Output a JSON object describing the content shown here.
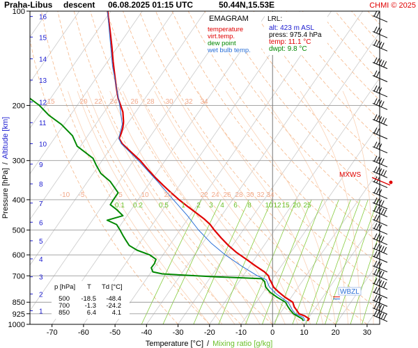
{
  "header": {
    "station": "Praha-Libus",
    "direction": "descent",
    "datetime": "06.08.2025 01:15 UTC",
    "coords": "50.44N,15.53E",
    "credit": "CHMI © 2025"
  },
  "chart_data": {
    "type": "line",
    "title": "EMAGRAM",
    "xlabel": "Temperature [°C]",
    "xlabel_sep": "/",
    "xlabel_secondary": "Mixing ratio [g/kg]",
    "ylabel": "Pressure [hPa]",
    "ylabel_sep": "/",
    "ylabel_secondary": "Altitude [km]",
    "x_ticks": [
      -70,
      -60,
      -50,
      -40,
      -30,
      -20,
      -10,
      0,
      10,
      20,
      30
    ],
    "xlim": [
      -77,
      34
    ],
    "y_scale": "log",
    "ylim": [
      1000,
      100
    ],
    "pressure_ticks": [
      100,
      200,
      300,
      400,
      500,
      600,
      700,
      850,
      925,
      1000
    ],
    "altitude_ticks": [
      {
        "km": 1,
        "p": 905
      },
      {
        "km": 2,
        "p": 800
      },
      {
        "km": 3,
        "p": 705
      },
      {
        "km": 4,
        "p": 618
      },
      {
        "km": 5,
        "p": 541
      },
      {
        "km": 6,
        "p": 472
      },
      {
        "km": 7,
        "p": 410
      },
      {
        "km": 8,
        "p": 356
      },
      {
        "km": 9,
        "p": 308
      },
      {
        "km": 10,
        "p": 265
      },
      {
        "km": 11,
        "p": 227
      },
      {
        "km": 12,
        "p": 195
      },
      {
        "km": 13,
        "p": 166
      },
      {
        "km": 14,
        "p": 142
      },
      {
        "km": 15,
        "p": 121
      },
      {
        "km": 16,
        "p": 104
      }
    ],
    "legend": [
      {
        "name": "temperature",
        "color": "#e00000"
      },
      {
        "name": "virt.temp.",
        "color": "#e00000"
      },
      {
        "name": "dew point",
        "color": "#008800"
      },
      {
        "name": "wet bulb temp.",
        "color": "#2a6fd6"
      }
    ],
    "series": [
      {
        "name": "temperature",
        "color": "#e00000",
        "points": [
          {
            "p": 975,
            "t": 11.1
          },
          {
            "p": 960,
            "t": 11.6
          },
          {
            "p": 940,
            "t": 10.2
          },
          {
            "p": 925,
            "t": 8.4
          },
          {
            "p": 900,
            "t": 7.6
          },
          {
            "p": 880,
            "t": 6.9
          },
          {
            "p": 850,
            "t": 6.4
          },
          {
            "p": 820,
            "t": 4.0
          },
          {
            "p": 790,
            "t": 2.0
          },
          {
            "p": 760,
            "t": 0.3
          },
          {
            "p": 730,
            "t": -0.5
          },
          {
            "p": 720,
            "t": -0.9
          },
          {
            "p": 700,
            "t": -1.3
          },
          {
            "p": 680,
            "t": -2.6
          },
          {
            "p": 650,
            "t": -5.5
          },
          {
            "p": 620,
            "t": -8.3
          },
          {
            "p": 590,
            "t": -11.4
          },
          {
            "p": 560,
            "t": -14.0
          },
          {
            "p": 530,
            "t": -16.3
          },
          {
            "p": 500,
            "t": -18.5
          },
          {
            "p": 480,
            "t": -19.8
          },
          {
            "p": 460,
            "t": -21.8
          },
          {
            "p": 440,
            "t": -24.3
          },
          {
            "p": 420,
            "t": -27.0
          },
          {
            "p": 400,
            "t": -29.7
          },
          {
            "p": 380,
            "t": -32.2
          },
          {
            "p": 360,
            "t": -34.7
          },
          {
            "p": 340,
            "t": -37.2
          },
          {
            "p": 320,
            "t": -39.6
          },
          {
            "p": 300,
            "t": -42.0
          },
          {
            "p": 280,
            "t": -45.2
          },
          {
            "p": 265,
            "t": -47.7
          },
          {
            "p": 255,
            "t": -48.7
          },
          {
            "p": 245,
            "t": -48.0
          },
          {
            "p": 235,
            "t": -47.5
          },
          {
            "p": 225,
            "t": -47.3
          },
          {
            "p": 210,
            "t": -47.5
          },
          {
            "p": 200,
            "t": -48.2
          },
          {
            "p": 190,
            "t": -49.0
          },
          {
            "p": 175,
            "t": -49.6
          },
          {
            "p": 160,
            "t": -50.1
          },
          {
            "p": 145,
            "t": -50.6
          },
          {
            "p": 130,
            "t": -51.0
          },
          {
            "p": 115,
            "t": -51.6
          },
          {
            "p": 105,
            "t": -52.1
          },
          {
            "p": 100,
            "t": -52.3
          }
        ]
      },
      {
        "name": "dew point",
        "color": "#008800",
        "points": [
          {
            "p": 975,
            "t": 9.8
          },
          {
            "p": 960,
            "t": 9.4
          },
          {
            "p": 940,
            "t": 7.8
          },
          {
            "p": 925,
            "t": 6.6
          },
          {
            "p": 900,
            "t": 5.6
          },
          {
            "p": 875,
            "t": 4.8
          },
          {
            "p": 850,
            "t": 4.1
          },
          {
            "p": 820,
            "t": 1.5
          },
          {
            "p": 790,
            "t": -0.8
          },
          {
            "p": 760,
            "t": -2.2
          },
          {
            "p": 730,
            "t": -2.5
          },
          {
            "p": 715,
            "t": -3.5
          },
          {
            "p": 710,
            "t": -10.0
          },
          {
            "p": 705,
            "t": -18.0
          },
          {
            "p": 700,
            "t": -24.2
          },
          {
            "p": 690,
            "t": -35.0
          },
          {
            "p": 680,
            "t": -38.0
          },
          {
            "p": 660,
            "t": -38.5
          },
          {
            "p": 640,
            "t": -37.5
          },
          {
            "p": 620,
            "t": -37.0
          },
          {
            "p": 600,
            "t": -39.0
          },
          {
            "p": 580,
            "t": -43.0
          },
          {
            "p": 560,
            "t": -45.5
          },
          {
            "p": 540,
            "t": -46.5
          },
          {
            "p": 520,
            "t": -47.5
          },
          {
            "p": 500,
            "t": -48.4
          },
          {
            "p": 480,
            "t": -49.5
          },
          {
            "p": 465,
            "t": -52.5
          },
          {
            "p": 450,
            "t": -47.5
          },
          {
            "p": 430,
            "t": -49.5
          },
          {
            "p": 415,
            "t": -51.5
          },
          {
            "p": 400,
            "t": -50.5
          },
          {
            "p": 380,
            "t": -49.0
          },
          {
            "p": 350,
            "t": -51.5
          },
          {
            "p": 330,
            "t": -54.5
          },
          {
            "p": 310,
            "t": -56.0
          },
          {
            "p": 295,
            "t": -57.0
          },
          {
            "p": 270,
            "t": -62.0
          },
          {
            "p": 250,
            "t": -63.5
          },
          {
            "p": 230,
            "t": -67.0
          },
          {
            "p": 215,
            "t": -71.0
          },
          {
            "p": 200,
            "t": -74.0
          },
          {
            "p": 190,
            "t": -77.0
          }
        ]
      },
      {
        "name": "wet bulb temp.",
        "color": "#2a6fd6",
        "points": [
          {
            "p": 975,
            "t": 10.3
          },
          {
            "p": 950,
            "t": 9.8
          },
          {
            "p": 925,
            "t": 7.3
          },
          {
            "p": 900,
            "t": 6.3
          },
          {
            "p": 850,
            "t": 4.9
          },
          {
            "p": 800,
            "t": 1.2
          },
          {
            "p": 760,
            "t": -1.0
          },
          {
            "p": 720,
            "t": -2.0
          },
          {
            "p": 700,
            "t": -4.8
          },
          {
            "p": 650,
            "t": -10.0
          },
          {
            "p": 600,
            "t": -15.0
          },
          {
            "p": 550,
            "t": -19.5
          },
          {
            "p": 500,
            "t": -23.5
          },
          {
            "p": 450,
            "t": -27.0
          },
          {
            "p": 400,
            "t": -31.5
          },
          {
            "p": 350,
            "t": -36.5
          },
          {
            "p": 300,
            "t": -42.6
          },
          {
            "p": 265,
            "t": -48.0
          },
          {
            "p": 255,
            "t": -48.8
          },
          {
            "p": 230,
            "t": -47.7
          },
          {
            "p": 200,
            "t": -48.5
          },
          {
            "p": 150,
            "t": -50.8
          },
          {
            "p": 100,
            "t": -52.4
          }
        ]
      }
    ],
    "levels_table": {
      "headers": [
        "p [hPa]",
        "T",
        "Td [°C]"
      ],
      "rows": [
        [
          "500",
          "-18.5",
          "-48.4"
        ],
        [
          "700",
          "-1.3",
          "-24.2"
        ],
        [
          "850",
          "6.4",
          "4.1"
        ]
      ]
    },
    "lrl": {
      "title": "LRL:",
      "alt": "alt: 423 m ASL",
      "press": "press: 975.4 hPa",
      "temp": "temp: 11.1 °C",
      "dwpt": "dwpt: 9.8 °C"
    },
    "isotherm_labels_upper": [
      "15",
      "20",
      "22",
      "24",
      "26",
      "28",
      "30",
      "32",
      "34"
    ],
    "isotherm_labels_lower": [
      "-10",
      "-5",
      "5",
      "10",
      "20",
      "22",
      "24",
      "26",
      "28",
      "30",
      "32",
      "34"
    ],
    "mixing_ratio_labels": [
      "0.1",
      "0.2",
      "0.5",
      "1",
      "2",
      "3",
      "4",
      "6",
      "8",
      "10",
      "12",
      "15",
      "20",
      "25"
    ],
    "markers": {
      "mxws": "MXWS",
      "wbzl": "WBZL"
    },
    "wind_levels_hpa": [
      105,
      118,
      130,
      148,
      163,
      182,
      200,
      225,
      248,
      275,
      305,
      330,
      355,
      385,
      415,
      440,
      470,
      500,
      540,
      580,
      615,
      660,
      700,
      750,
      800,
      850,
      900,
      950
    ]
  }
}
